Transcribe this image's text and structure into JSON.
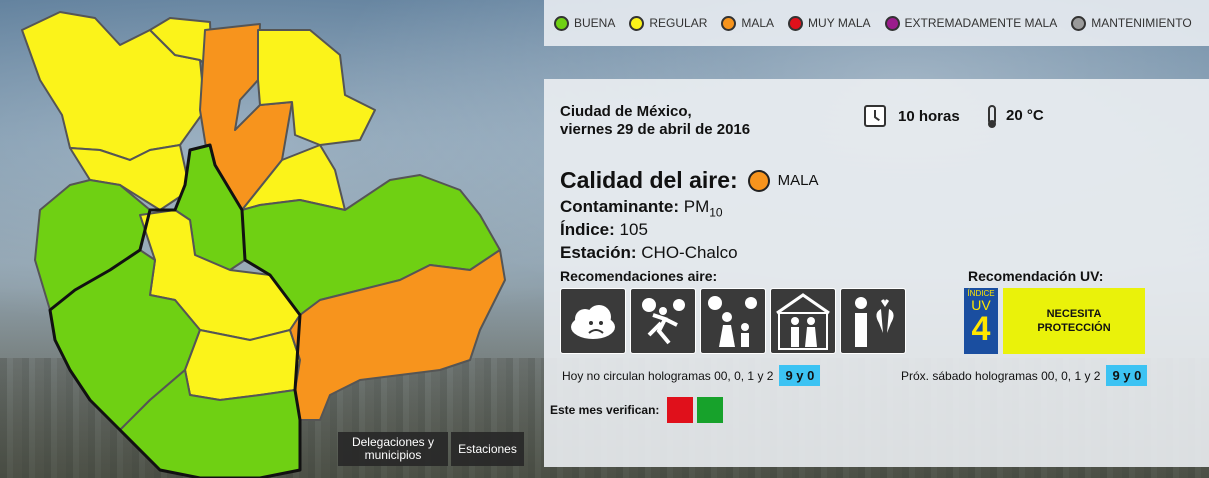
{
  "legend": {
    "items": [
      {
        "label": "BUENA",
        "color": "#6fd013"
      },
      {
        "label": "REGULAR",
        "color": "#fbf31a"
      },
      {
        "label": "MALA",
        "color": "#f7941d"
      },
      {
        "label": "MUY MALA",
        "color": "#e0101b"
      },
      {
        "label": "EXTREMADAMENTE MALA",
        "color": "#9b1d8c"
      },
      {
        "label": "MANTENIMIENTO",
        "color": "#9a9a9a"
      }
    ]
  },
  "report": {
    "city": "Ciudad de México,",
    "date": "viernes 29 de abril de 2016",
    "hour": "10 horas",
    "temperature": "20 °C",
    "quality_label": "Calidad del aire:",
    "quality_value": "MALA",
    "quality_color": "#f7941d",
    "pollutant_label": "Contaminante:",
    "pollutant_value": "PM",
    "pollutant_sub": "10",
    "index_label": "Índice:",
    "index_value": "105",
    "station_label": "Estación:",
    "station_value": "CHO-Chalco"
  },
  "recommendations": {
    "title": "Recomendaciones aire:",
    "icons": [
      "sad-cloud-icon",
      "running-person-sun-icon",
      "family-sun-icon",
      "elderly-indoors-icon",
      "lungs-heart-icon"
    ]
  },
  "uv": {
    "title": "Recomendación UV:",
    "badge_small": "ÍNDICE",
    "badge_uv": "UV",
    "badge_value": "4",
    "message": "NECESITA PROTECCIÓN"
  },
  "circulation": {
    "today_text": "Hoy no circulan hologramas 00, 0, 1 y 2",
    "today_tag": "9 y 0",
    "saturday_text": "Próx. sábado hologramas 00, 0, 1 y 2",
    "saturday_tag": "9 y 0"
  },
  "verification": {
    "label": "Este mes verifican:",
    "colors": [
      "#e0101b",
      "#17a22b"
    ]
  },
  "buttons": {
    "delegaciones": "Delegaciones y municipios",
    "estaciones": "Estaciones"
  }
}
